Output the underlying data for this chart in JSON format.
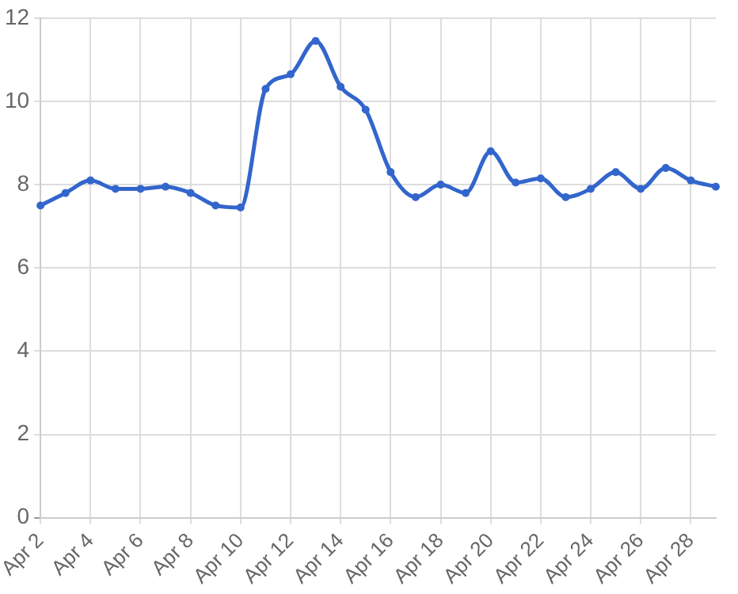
{
  "chart_data": {
    "type": "line",
    "categories": [
      "Apr 2",
      null,
      "Apr 4",
      null,
      "Apr 6",
      null,
      "Apr 8",
      null,
      "Apr 10",
      null,
      "Apr 12",
      null,
      "Apr 14",
      null,
      "Apr 16",
      null,
      "Apr 18",
      null,
      "Apr 20",
      null,
      "Apr 22",
      null,
      "Apr 24",
      null,
      "Apr 26",
      null,
      "Apr 28",
      null
    ],
    "series": [
      {
        "color": "#3366cc",
        "values": [
          7.5,
          7.8,
          8.1,
          7.9,
          7.9,
          7.95,
          7.8,
          7.5,
          7.45,
          10.3,
          10.65,
          11.45,
          10.35,
          9.8,
          8.3,
          7.7,
          8.0,
          7.8,
          8.8,
          8.05,
          8.15,
          7.7,
          7.9,
          8.3,
          7.9,
          8.4,
          8.1,
          7.95
        ]
      }
    ],
    "ylim": [
      0,
      12
    ],
    "yticks": [
      0,
      2,
      4,
      6,
      8,
      10,
      12
    ],
    "grid": true,
    "legend": false,
    "marker": "circle",
    "line_style": "solid"
  }
}
